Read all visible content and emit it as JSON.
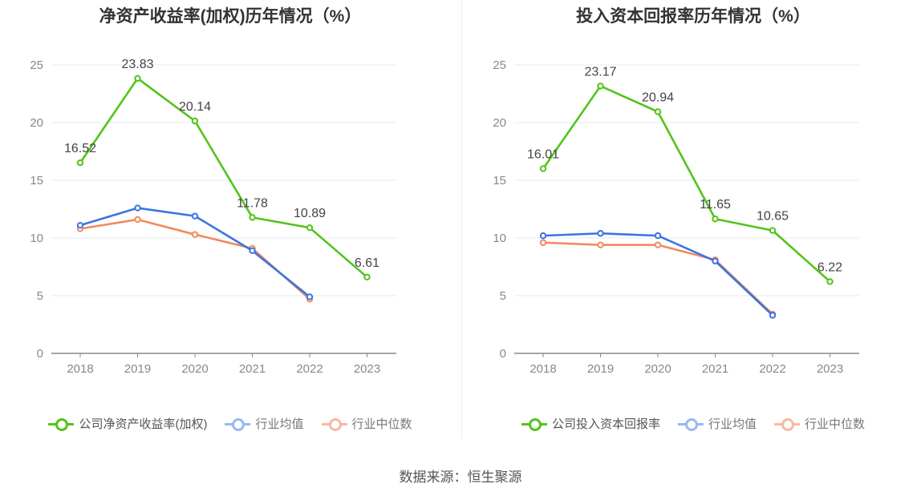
{
  "source": "数据来源：恒生聚源",
  "chart_data": [
    {
      "type": "line",
      "title": "净资产收益率(加权)历年情况（%）",
      "categories": [
        "2018",
        "2019",
        "2020",
        "2021",
        "2022",
        "2023"
      ],
      "ylim": [
        0,
        25
      ],
      "yticks": [
        "0",
        "5",
        "10",
        "15",
        "20",
        "25"
      ],
      "grid": true,
      "legend_position": "bottom-center",
      "series": [
        {
          "name": "公司净资产收益率(加权)",
          "color": "#52c41a",
          "values": [
            16.52,
            23.83,
            20.14,
            11.78,
            10.89,
            6.61
          ],
          "labels": [
            "16.52",
            "23.83",
            "20.14",
            "11.78",
            "10.89",
            "6.61"
          ]
        },
        {
          "name": "行业均值",
          "color": "#3b74e0",
          "values": [
            11.1,
            12.6,
            11.9,
            8.9,
            4.9,
            null
          ]
        },
        {
          "name": "行业中位数",
          "color": "#f08a5d",
          "values": [
            10.8,
            11.6,
            10.3,
            9.1,
            4.7,
            null
          ]
        }
      ]
    },
    {
      "type": "line",
      "title": "投入资本回报率历年情况（%）",
      "categories": [
        "2018",
        "2019",
        "2020",
        "2021",
        "2022",
        "2023"
      ],
      "ylim": [
        0,
        25
      ],
      "yticks": [
        "0",
        "5",
        "10",
        "15",
        "20",
        "25"
      ],
      "grid": true,
      "legend_position": "bottom-center",
      "series": [
        {
          "name": "公司投入资本回报率",
          "color": "#52c41a",
          "values": [
            16.01,
            23.17,
            20.94,
            11.65,
            10.65,
            6.22
          ],
          "labels": [
            "16.01",
            "23.17",
            "20.94",
            "11.65",
            "10.65",
            "6.22"
          ]
        },
        {
          "name": "行业均值",
          "color": "#3b74e0",
          "values": [
            10.2,
            10.4,
            10.2,
            8.0,
            3.3,
            null
          ]
        },
        {
          "name": "行业中位数",
          "color": "#f08a5d",
          "values": [
            9.6,
            9.4,
            9.4,
            8.1,
            3.4,
            null
          ]
        }
      ]
    }
  ]
}
